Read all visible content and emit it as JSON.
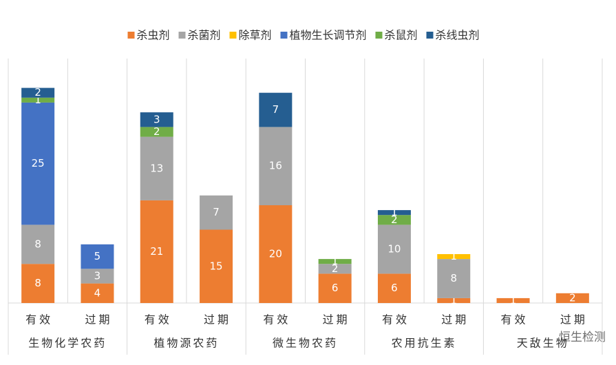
{
  "chart_data": {
    "type": "stacked_bar",
    "groups": [
      "生物化学农药",
      "植物源农药",
      "微生物农药",
      "农用抗生素",
      "天敌生物"
    ],
    "categories": [
      "有效",
      "过期",
      "有效",
      "过期",
      "有效",
      "过期",
      "有效",
      "过期",
      "有效",
      "过期"
    ],
    "series": [
      {
        "name": "杀虫剂",
        "color": "#ED7D31",
        "values": [
          8,
          4,
          21,
          15,
          20,
          6,
          6,
          1,
          1,
          2
        ]
      },
      {
        "name": "杀菌剂",
        "color": "#A5A5A5",
        "values": [
          8,
          3,
          13,
          7,
          16,
          2,
          10,
          8,
          null,
          null
        ]
      },
      {
        "name": "除草剂",
        "color": "#FFC000",
        "values": [
          null,
          null,
          null,
          null,
          null,
          null,
          null,
          1,
          null,
          null
        ]
      },
      {
        "name": "植物生长调节剂",
        "color": "#4472C4",
        "values": [
          25,
          5,
          null,
          null,
          null,
          null,
          null,
          null,
          null,
          null
        ]
      },
      {
        "name": "杀鼠剂",
        "color": "#70AD47",
        "values": [
          1,
          null,
          2,
          null,
          null,
          1,
          2,
          null,
          null,
          null
        ]
      },
      {
        "name": "杀线虫剂",
        "color": "#255E91",
        "values": [
          2,
          null,
          3,
          null,
          7,
          null,
          1,
          null,
          null,
          null
        ]
      }
    ],
    "ylim": [
      0,
      50
    ],
    "watermark": "恒生检测"
  }
}
